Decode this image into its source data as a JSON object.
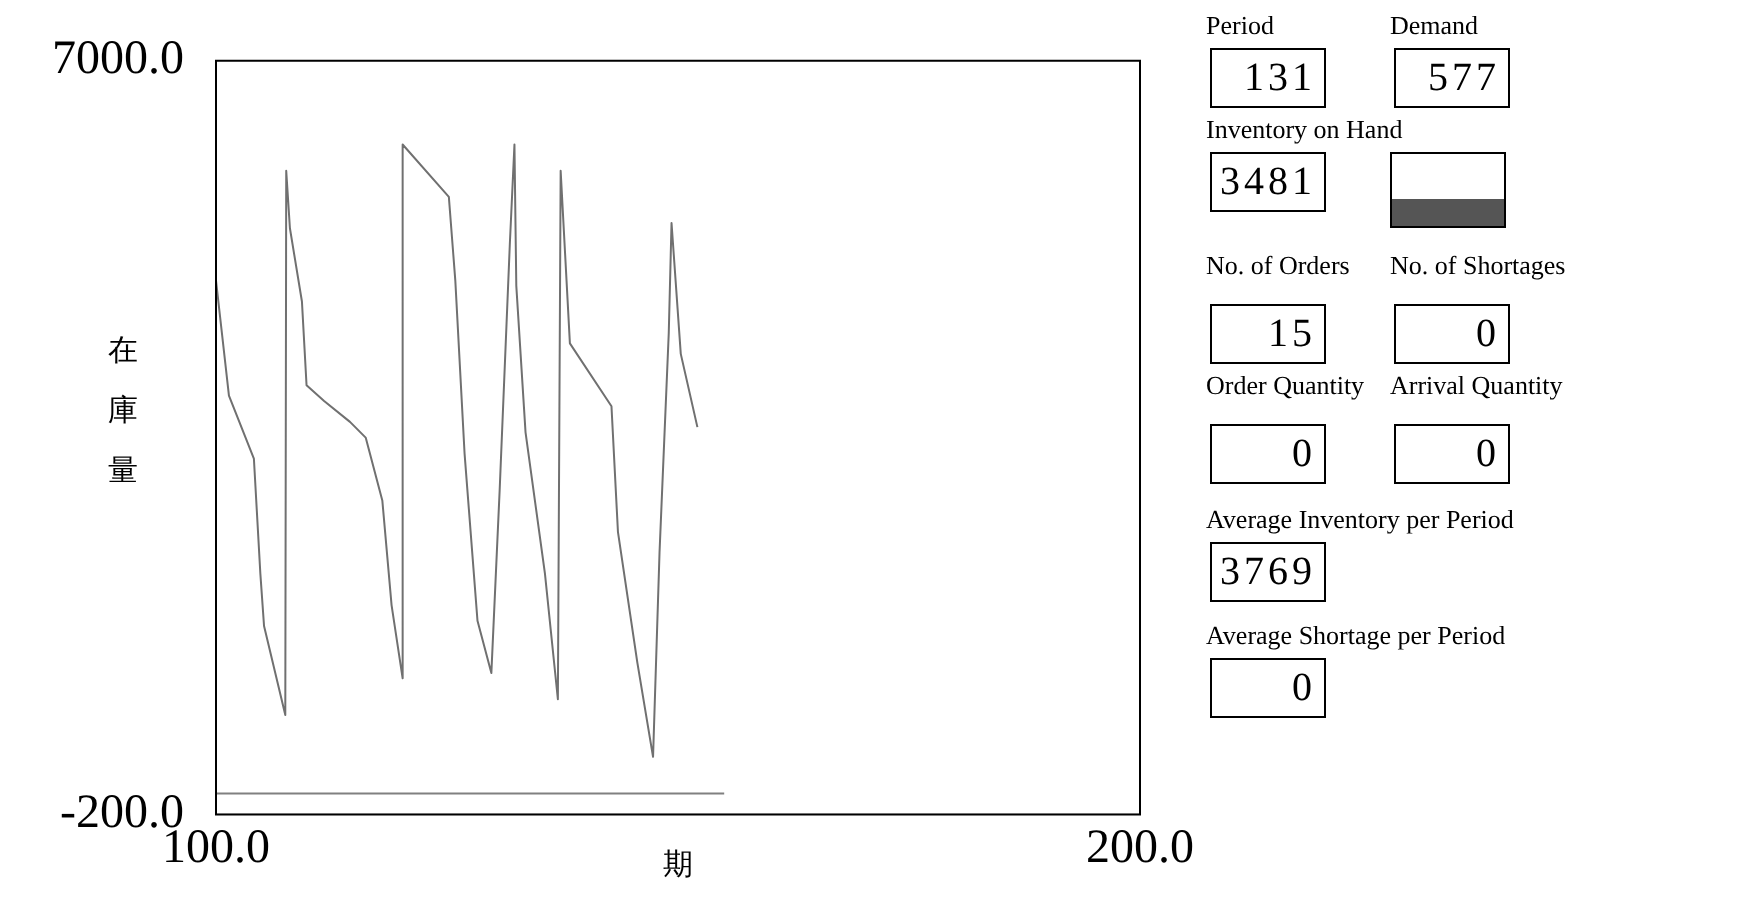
{
  "chart_data": [
    {
      "type": "line",
      "xlabel": "期",
      "ylabel": "在庫量",
      "xlim": [
        100,
        200
      ],
      "xticks": [
        {
          "value": 100,
          "label": "100.0"
        },
        {
          "value": 200,
          "label": "200.0"
        }
      ],
      "ylim": [
        -200,
        7000
      ],
      "yticks": [
        {
          "value": -200,
          "label": "-200.0"
        },
        {
          "value": 7000,
          "label": "7000.0"
        }
      ],
      "grid": false,
      "legend": false,
      "marker": "none",
      "line_style": "solid",
      "series": [
        {
          "color": "#707070",
          "x": [
            100,
            101.4,
            104.1,
            104.8,
            105.2,
            107.5,
            107.6,
            108,
            109.3,
            109.8,
            111.7,
            114.5,
            116.2,
            118,
            119,
            120.2,
            120.2,
            125.2,
            125.9,
            126.9,
            128.3,
            129.8,
            130.7,
            131.8,
            132.3,
            132.5,
            133.5,
            135.6,
            137,
            137.3,
            138.3,
            142.8,
            143.5,
            145.6,
            147.3,
            148,
            149,
            149.3,
            150.3,
            152.1
          ],
          "values": [
            4900,
            3800,
            3200,
            2100,
            1600,
            750,
            5950,
            5400,
            4700,
            3900,
            3750,
            3550,
            3400,
            2800,
            1800,
            1100,
            6200,
            5700,
            4900,
            3250,
            1650,
            1150,
            2900,
            5250,
            6200,
            4850,
            3450,
            2100,
            900,
            5950,
            4300,
            3700,
            2500,
            1250,
            350,
            2300,
            4400,
            5450,
            4200,
            3500
          ]
        },
        {
          "color": "#808080",
          "x": [
            100,
            155
          ],
          "values": [
            0,
            0
          ]
        }
      ]
    },
    {
      "type": "other",
      "annotations": [
        "Period",
        "131",
        "Demand",
        "577",
        "Inventory on Hand",
        "3481",
        "No. of Orders",
        "15",
        "No. of Shortages",
        "0",
        "Order Quantity",
        "0",
        "Arrival Quantity",
        "0",
        "Average Inventory per Period",
        "3769",
        "Average Shortage per Period",
        "0"
      ]
    }
  ]
}
